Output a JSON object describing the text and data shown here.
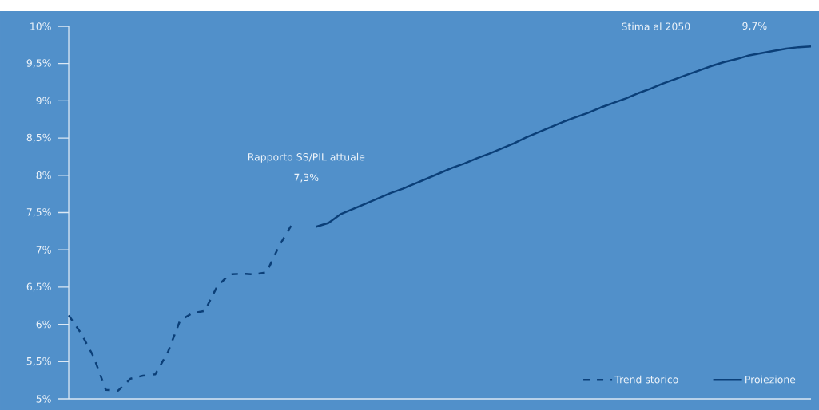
{
  "chart_data": {
    "type": "line",
    "categories": [
      null,
      null,
      null,
      null,
      null,
      null,
      null,
      null,
      null,
      null,
      null,
      null,
      null,
      null,
      null,
      null,
      null,
      null,
      null,
      null,
      null,
      null,
      null,
      null,
      null,
      null,
      null,
      null,
      null,
      null,
      null,
      null,
      null,
      null,
      null,
      null,
      null,
      null,
      null,
      null,
      null,
      null,
      null,
      null,
      null,
      null,
      null,
      null,
      null,
      null,
      null,
      null,
      null,
      null,
      null,
      null,
      null,
      null,
      null,
      null,
      null
    ],
    "series": [
      {
        "name": "Trend storico",
        "color": "#0b3f78",
        "line_style": "dashed",
        "values": [
          6.12,
          5.88,
          5.57,
          5.12,
          5.11,
          5.27,
          5.31,
          5.33,
          5.62,
          6.05,
          6.15,
          6.18,
          6.51,
          6.67,
          6.68,
          6.67,
          6.7,
          7.05,
          7.33,
          null,
          null,
          null,
          null,
          null,
          null,
          null,
          null,
          null,
          null,
          null,
          null,
          null,
          null,
          null,
          null,
          null,
          null,
          null,
          null,
          null,
          null,
          null,
          null,
          null,
          null,
          null,
          null,
          null,
          null,
          null,
          null,
          null,
          null,
          null,
          null,
          null,
          null,
          null,
          null,
          null,
          null
        ]
      },
      {
        "name": "Proiezione",
        "color": "#0b3f78",
        "line_style": "solid",
        "values": [
          null,
          null,
          null,
          null,
          null,
          null,
          null,
          null,
          null,
          null,
          null,
          null,
          null,
          null,
          null,
          null,
          null,
          null,
          null,
          null,
          7.31,
          7.36,
          7.48,
          7.55,
          7.62,
          7.69,
          7.76,
          7.82,
          7.89,
          7.96,
          8.03,
          8.1,
          8.16,
          8.23,
          8.29,
          8.36,
          8.43,
          8.51,
          8.58,
          8.65,
          8.72,
          8.78,
          8.84,
          8.91,
          8.97,
          9.03,
          9.1,
          9.16,
          9.23,
          9.29,
          9.35,
          9.41,
          9.47,
          9.52,
          9.56,
          9.61,
          9.64,
          9.67,
          9.7,
          9.72,
          9.73
        ]
      }
    ],
    "ylim": [
      5,
      10
    ],
    "yticks": [
      {
        "value": 5,
        "label": "5%"
      },
      {
        "value": 5.5,
        "label": "5,5%"
      },
      {
        "value": 6,
        "label": "6%"
      },
      {
        "value": 6.5,
        "label": "6,5%"
      },
      {
        "value": 7,
        "label": "7%"
      },
      {
        "value": 7.5,
        "label": "7,5%"
      },
      {
        "value": 8,
        "label": "8%"
      },
      {
        "value": 8.5,
        "label": "8,5%"
      },
      {
        "value": 9,
        "label": "9%"
      },
      {
        "value": 9.5,
        "label": "9,5%"
      },
      {
        "value": 10,
        "label": "10%"
      }
    ],
    "annotations": [
      "Rapporto SS/PIL attuale",
      "7,3%",
      "Stima al 2050",
      "9,7%"
    ],
    "legend": "bottom right",
    "tick_labels": "y",
    "grid": false
  }
}
